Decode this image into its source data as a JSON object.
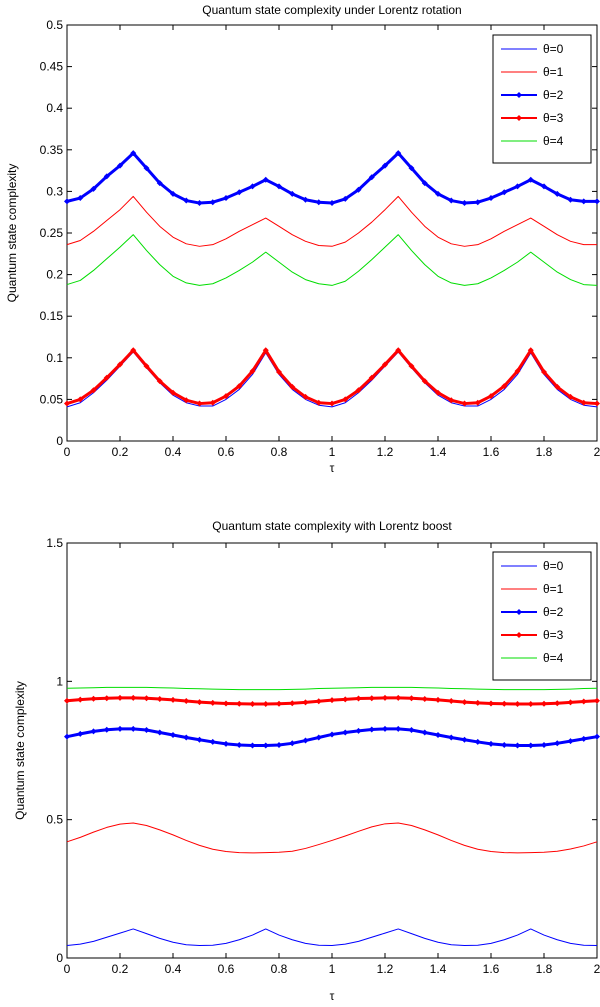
{
  "chart_data": [
    {
      "type": "line",
      "title": "Quantum state complexity under Lorentz rotation",
      "xlabel": "τ",
      "ylabel": "Quantum state complexity",
      "xlim": [
        0,
        2
      ],
      "ylim": [
        0,
        0.5
      ],
      "xticks": [
        "0",
        "0.2",
        "0.4",
        "0.6",
        "0.8",
        "1",
        "1.2",
        "1.4",
        "1.6",
        "1.8",
        "2"
      ],
      "yticks": [
        "0",
        "0.05",
        "0.1",
        "0.15",
        "0.2",
        "0.25",
        "0.3",
        "0.35",
        "0.4",
        "0.45",
        "0.5"
      ],
      "legend_position": "top-right",
      "x": [
        0,
        0.05,
        0.1,
        0.15,
        0.2,
        0.25,
        0.3,
        0.35,
        0.4,
        0.45,
        0.5,
        0.55,
        0.6,
        0.65,
        0.7,
        0.75,
        0.8,
        0.85,
        0.9,
        0.95,
        1,
        1.05,
        1.1,
        1.15,
        1.2,
        1.25,
        1.3,
        1.35,
        1.4,
        1.45,
        1.5,
        1.55,
        1.6,
        1.65,
        1.7,
        1.75,
        1.8,
        1.85,
        1.9,
        1.95,
        2
      ],
      "series": [
        {
          "name": "θ=0",
          "color": "#0000ff",
          "style": "thin",
          "values": [
            0.041,
            0.046,
            0.058,
            0.073,
            0.09,
            0.107,
            0.088,
            0.07,
            0.055,
            0.046,
            0.042,
            0.042,
            0.05,
            0.062,
            0.08,
            0.106,
            0.08,
            0.062,
            0.05,
            0.043,
            0.041,
            0.046,
            0.058,
            0.073,
            0.09,
            0.107,
            0.088,
            0.07,
            0.055,
            0.046,
            0.042,
            0.042,
            0.05,
            0.062,
            0.08,
            0.106,
            0.08,
            0.062,
            0.05,
            0.043,
            0.041
          ]
        },
        {
          "name": "θ=1",
          "color": "#ff0000",
          "style": "thin",
          "values": [
            0.236,
            0.241,
            0.252,
            0.265,
            0.278,
            0.294,
            0.275,
            0.258,
            0.245,
            0.237,
            0.234,
            0.236,
            0.243,
            0.252,
            0.26,
            0.268,
            0.258,
            0.248,
            0.24,
            0.235,
            0.234,
            0.239,
            0.25,
            0.263,
            0.278,
            0.294,
            0.275,
            0.258,
            0.245,
            0.237,
            0.234,
            0.236,
            0.243,
            0.252,
            0.26,
            0.268,
            0.258,
            0.248,
            0.24,
            0.236,
            0.236
          ]
        },
        {
          "name": "θ=2",
          "color": "#0000ff",
          "style": "marker",
          "values": [
            0.288,
            0.292,
            0.303,
            0.318,
            0.331,
            0.346,
            0.328,
            0.31,
            0.297,
            0.289,
            0.286,
            0.287,
            0.292,
            0.299,
            0.306,
            0.314,
            0.306,
            0.297,
            0.29,
            0.287,
            0.286,
            0.291,
            0.302,
            0.317,
            0.331,
            0.346,
            0.328,
            0.31,
            0.297,
            0.289,
            0.286,
            0.287,
            0.292,
            0.299,
            0.306,
            0.314,
            0.306,
            0.297,
            0.29,
            0.288,
            0.288
          ]
        },
        {
          "name": "θ=3",
          "color": "#ff0000",
          "style": "marker",
          "values": [
            0.045,
            0.05,
            0.061,
            0.076,
            0.092,
            0.109,
            0.09,
            0.072,
            0.058,
            0.049,
            0.045,
            0.046,
            0.054,
            0.066,
            0.084,
            0.109,
            0.083,
            0.065,
            0.053,
            0.046,
            0.045,
            0.05,
            0.061,
            0.076,
            0.092,
            0.109,
            0.09,
            0.072,
            0.058,
            0.049,
            0.045,
            0.046,
            0.054,
            0.066,
            0.084,
            0.109,
            0.083,
            0.065,
            0.053,
            0.046,
            0.045
          ]
        },
        {
          "name": "θ=4",
          "color": "#00dd00",
          "style": "thin",
          "values": [
            0.188,
            0.193,
            0.205,
            0.219,
            0.233,
            0.248,
            0.229,
            0.212,
            0.198,
            0.19,
            0.187,
            0.189,
            0.196,
            0.205,
            0.215,
            0.227,
            0.215,
            0.203,
            0.194,
            0.189,
            0.187,
            0.192,
            0.204,
            0.218,
            0.233,
            0.248,
            0.229,
            0.212,
            0.198,
            0.19,
            0.187,
            0.189,
            0.196,
            0.205,
            0.215,
            0.227,
            0.215,
            0.203,
            0.194,
            0.188,
            0.187
          ]
        }
      ]
    },
    {
      "type": "line",
      "title": "Quantum state complexity with Lorentz boost",
      "xlabel": "τ",
      "ylabel": "Quantum state complexity",
      "xlim": [
        0,
        2
      ],
      "ylim": [
        0,
        1.5
      ],
      "xticks": [
        "0",
        "0.2",
        "0.4",
        "0.6",
        "0.8",
        "1",
        "1.2",
        "1.4",
        "1.6",
        "1.8",
        "2"
      ],
      "yticks": [
        "0",
        "0.5",
        "1",
        "1.5"
      ],
      "legend_position": "top-right",
      "x": [
        0,
        0.05,
        0.1,
        0.15,
        0.2,
        0.25,
        0.3,
        0.35,
        0.4,
        0.45,
        0.5,
        0.55,
        0.6,
        0.65,
        0.7,
        0.75,
        0.8,
        0.85,
        0.9,
        0.95,
        1,
        1.05,
        1.1,
        1.15,
        1.2,
        1.25,
        1.3,
        1.35,
        1.4,
        1.45,
        1.5,
        1.55,
        1.6,
        1.65,
        1.7,
        1.75,
        1.8,
        1.85,
        1.9,
        1.95,
        2
      ],
      "series": [
        {
          "name": "θ=0",
          "color": "#0000ff",
          "style": "thin",
          "values": [
            0.045,
            0.05,
            0.06,
            0.075,
            0.09,
            0.105,
            0.088,
            0.071,
            0.057,
            0.048,
            0.045,
            0.046,
            0.053,
            0.066,
            0.083,
            0.105,
            0.083,
            0.066,
            0.053,
            0.046,
            0.045,
            0.05,
            0.06,
            0.075,
            0.09,
            0.105,
            0.088,
            0.071,
            0.057,
            0.048,
            0.045,
            0.046,
            0.053,
            0.066,
            0.083,
            0.105,
            0.083,
            0.066,
            0.053,
            0.046,
            0.045
          ]
        },
        {
          "name": "θ=1",
          "color": "#ff0000",
          "style": "thin",
          "values": [
            0.42,
            0.436,
            0.455,
            0.472,
            0.484,
            0.488,
            0.479,
            0.463,
            0.445,
            0.425,
            0.407,
            0.393,
            0.385,
            0.381,
            0.38,
            0.381,
            0.382,
            0.386,
            0.396,
            0.41,
            0.425,
            0.441,
            0.458,
            0.474,
            0.485,
            0.488,
            0.479,
            0.463,
            0.445,
            0.425,
            0.407,
            0.393,
            0.385,
            0.381,
            0.38,
            0.381,
            0.382,
            0.386,
            0.394,
            0.405,
            0.42
          ]
        },
        {
          "name": "θ=2",
          "color": "#0000ff",
          "style": "marker",
          "values": [
            0.8,
            0.81,
            0.819,
            0.825,
            0.828,
            0.828,
            0.824,
            0.815,
            0.806,
            0.797,
            0.789,
            0.781,
            0.774,
            0.77,
            0.768,
            0.768,
            0.77,
            0.776,
            0.786,
            0.797,
            0.808,
            0.815,
            0.821,
            0.826,
            0.828,
            0.828,
            0.824,
            0.815,
            0.806,
            0.797,
            0.789,
            0.781,
            0.774,
            0.77,
            0.768,
            0.768,
            0.77,
            0.776,
            0.784,
            0.792,
            0.8
          ]
        },
        {
          "name": "θ=3",
          "color": "#ff0000",
          "style": "marker",
          "values": [
            0.93,
            0.934,
            0.937,
            0.939,
            0.94,
            0.94,
            0.939,
            0.936,
            0.933,
            0.929,
            0.925,
            0.922,
            0.92,
            0.919,
            0.918,
            0.918,
            0.919,
            0.921,
            0.924,
            0.928,
            0.932,
            0.935,
            0.938,
            0.939,
            0.94,
            0.94,
            0.939,
            0.936,
            0.933,
            0.929,
            0.925,
            0.922,
            0.92,
            0.919,
            0.918,
            0.918,
            0.919,
            0.921,
            0.924,
            0.927,
            0.93
          ]
        },
        {
          "name": "θ=4",
          "color": "#00dd00",
          "style": "thin",
          "values": [
            0.975,
            0.976,
            0.977,
            0.978,
            0.978,
            0.978,
            0.978,
            0.977,
            0.976,
            0.974,
            0.973,
            0.972,
            0.971,
            0.97,
            0.97,
            0.97,
            0.97,
            0.971,
            0.972,
            0.974,
            0.975,
            0.976,
            0.977,
            0.978,
            0.978,
            0.978,
            0.978,
            0.977,
            0.976,
            0.974,
            0.973,
            0.972,
            0.971,
            0.97,
            0.97,
            0.97,
            0.97,
            0.971,
            0.972,
            0.974,
            0.975
          ]
        }
      ]
    }
  ]
}
